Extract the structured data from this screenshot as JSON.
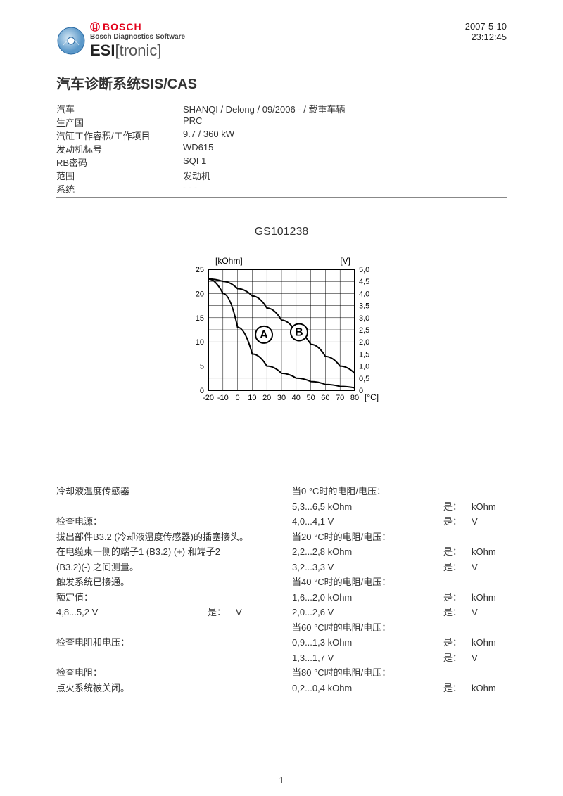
{
  "header": {
    "brand": "BOSCH",
    "subtitle": "Bosch Diagnostics Software",
    "product": "ESI",
    "product_suffix": "[tronic]",
    "date": "2007-5-10",
    "time": "23:12:45"
  },
  "title": "汽车诊断系统SIS/CAS",
  "info": [
    {
      "label": "汽车",
      "value": "SHANQI / Delong / 09/2006 - / 载重车辆"
    },
    {
      "label": "生产国",
      "value": "PRC"
    },
    {
      "label": "汽缸工作容积/工作项目",
      "value": "9.7 / 360 kW"
    },
    {
      "label": "发动机标号",
      "value": "WD615"
    },
    {
      "label": "RB密码",
      "value": "SQI 1"
    },
    {
      "label": "范围",
      "value": "发动机"
    },
    {
      "label": "系统",
      "value": "- - -"
    }
  ],
  "gs_code": "GS101238",
  "chart": {
    "y_left_label": "[kOhm]",
    "y_right_label": "[V]",
    "x_label": "[°C]",
    "x_ticks": [
      "-20",
      "-10",
      "0",
      "10",
      "20",
      "30",
      "40",
      "50",
      "60",
      "70",
      "80"
    ],
    "y_left_ticks": [
      "0",
      "5",
      "10",
      "15",
      "20",
      "25"
    ],
    "y_right_ticks": [
      "0",
      "0,5",
      "1,0",
      "1,5",
      "2,0",
      "2,5",
      "3,0",
      "3,5",
      "4,0",
      "4,5",
      "5,0"
    ],
    "curve_a": [
      [
        -20,
        23
      ],
      [
        -10,
        20
      ],
      [
        0,
        13
      ],
      [
        10,
        7.5
      ],
      [
        20,
        5
      ],
      [
        30,
        3.5
      ],
      [
        40,
        2.5
      ],
      [
        50,
        1.8
      ],
      [
        60,
        1.2
      ],
      [
        70,
        0.8
      ],
      [
        80,
        0.5
      ]
    ],
    "curve_b": [
      [
        -20,
        4.6
      ],
      [
        -10,
        4.5
      ],
      [
        0,
        4.2
      ],
      [
        10,
        3.9
      ],
      [
        20,
        3.4
      ],
      [
        30,
        2.9
      ],
      [
        40,
        2.4
      ],
      [
        50,
        1.9
      ],
      [
        60,
        1.4
      ],
      [
        70,
        1.0
      ],
      [
        80,
        0.7
      ]
    ],
    "label_a": "A",
    "label_b": "B",
    "curve_color": "#000000",
    "grid_color": "#000000",
    "background": "#ffffff",
    "x_range": [
      -20,
      80
    ],
    "y_left_range": [
      0,
      25
    ],
    "y_right_range": [
      0,
      5.0
    ]
  },
  "left_col": [
    {
      "t": "plain",
      "text": "冷却液温度传感器"
    },
    {
      "t": "blank"
    },
    {
      "t": "plain",
      "text": "检查电源："
    },
    {
      "t": "plain",
      "text": "拔出部件B3.2 (冷却液温度传感器)的插塞接头。"
    },
    {
      "t": "plain",
      "text": "在电缆束一侧的端子1 (B3.2) (+) 和端子2"
    },
    {
      "t": "plain",
      "text": "(B3.2)(-) 之间测量。"
    },
    {
      "t": "plain",
      "text": "触发系统已接通。"
    },
    {
      "t": "plain",
      "text": "额定值："
    },
    {
      "t": "row",
      "c1": "4,8...5,2 V",
      "c2": "是：",
      "c3": "V"
    },
    {
      "t": "blank"
    },
    {
      "t": "plain",
      "text": "检查电阻和电压："
    },
    {
      "t": "blank"
    },
    {
      "t": "plain",
      "text": "检查电阻："
    },
    {
      "t": "plain",
      "text": "点火系统被关闭。"
    }
  ],
  "right_col": [
    {
      "t": "plain",
      "text": "当0 °C时的电阻/电压："
    },
    {
      "t": "row",
      "c1": "5,3...6,5 kOhm",
      "c2": "是：",
      "c3": "kOhm"
    },
    {
      "t": "row",
      "c1": "4,0...4,1 V",
      "c2": "是：",
      "c3": "V"
    },
    {
      "t": "plain",
      "text": "当20 °C时的电阻/电压："
    },
    {
      "t": "row",
      "c1": "2,2...2,8 kOhm",
      "c2": "是：",
      "c3": "kOhm"
    },
    {
      "t": "row",
      "c1": "3,2...3,3 V",
      "c2": "是：",
      "c3": "V"
    },
    {
      "t": "plain",
      "text": "当40 °C时的电阻/电压："
    },
    {
      "t": "row",
      "c1": "1,6...2,0 kOhm",
      "c2": "是：",
      "c3": "kOhm"
    },
    {
      "t": "row",
      "c1": "2,0...2,6 V",
      "c2": "是：",
      "c3": "V"
    },
    {
      "t": "plain",
      "text": "当60 °C时的电阻/电压："
    },
    {
      "t": "row",
      "c1": "0,9...1,3 kOhm",
      "c2": "是：",
      "c3": "kOhm"
    },
    {
      "t": "row",
      "c1": "1,3...1,7 V",
      "c2": "是：",
      "c3": "V"
    },
    {
      "t": "plain",
      "text": "当80 °C时的电阻/电压："
    },
    {
      "t": "row",
      "c1": "0,2...0,4 kOhm",
      "c2": "是：",
      "c3": "kOhm"
    }
  ],
  "page_number": "1"
}
